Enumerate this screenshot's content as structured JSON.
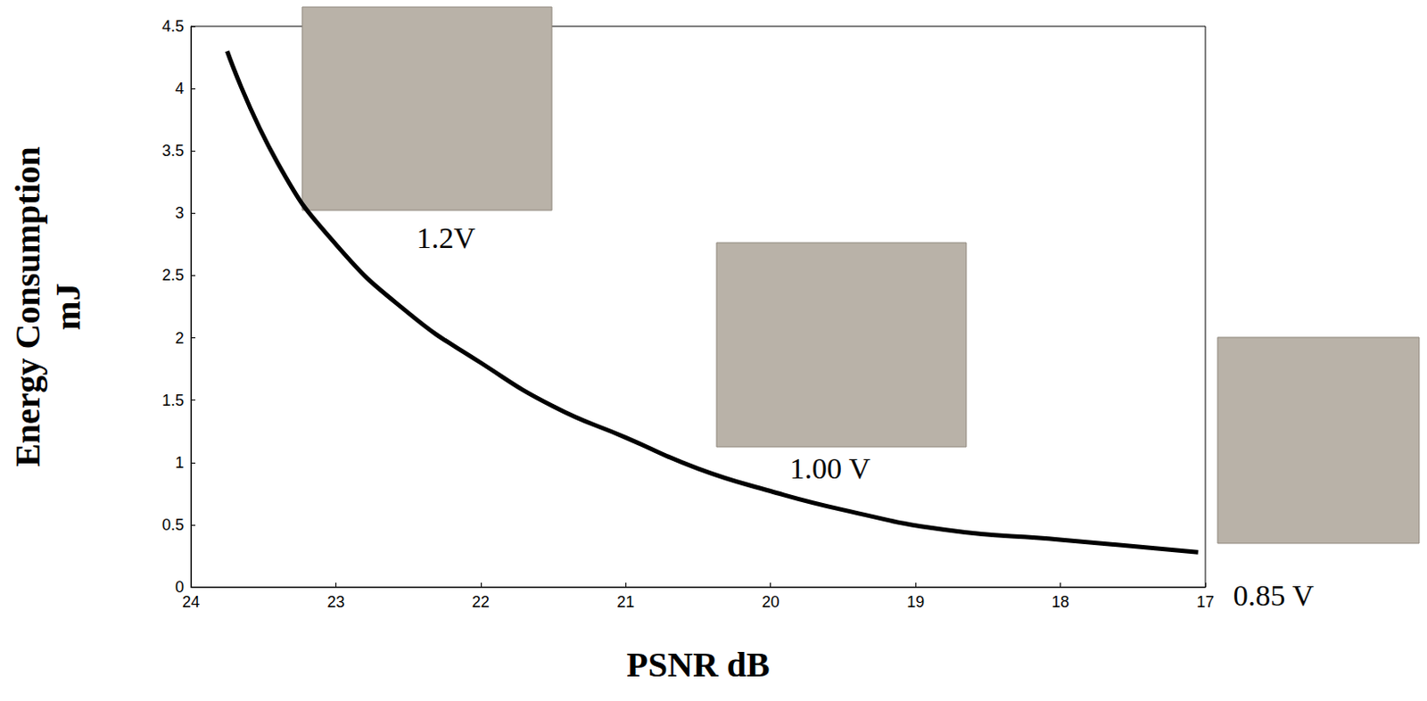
{
  "chart_data": {
    "type": "line",
    "x_label": "PSNR dB",
    "y_label": "Energy Consumption mJ",
    "x": [
      23.75,
      23.4,
      23.0,
      22.5,
      22.0,
      21.5,
      21.0,
      20.5,
      20.0,
      19.5,
      18.8,
      18.0,
      17.05
    ],
    "values": [
      4.3,
      3.4,
      2.75,
      2.2,
      1.8,
      1.45,
      1.2,
      0.95,
      0.77,
      0.62,
      0.46,
      0.38,
      0.28
    ],
    "color": "#000000",
    "line_style": "solid",
    "xlim": [
      24,
      17
    ],
    "xticks": [
      24,
      23,
      22,
      21,
      20,
      19,
      18,
      17
    ],
    "ylim": [
      0,
      4.5
    ],
    "yticks": [
      0,
      0.5,
      1,
      1.5,
      2,
      2.5,
      3,
      3.5,
      4,
      4.5
    ],
    "grid": false,
    "annotations": [
      {
        "text": "1.2V",
        "x": 22.24,
        "y": 2.8
      },
      {
        "text": "1.00 V",
        "x": 19.59,
        "y": 0.95
      },
      {
        "text": "0.85 V",
        "x": 16.53,
        "y": -0.07
      }
    ]
  }
}
